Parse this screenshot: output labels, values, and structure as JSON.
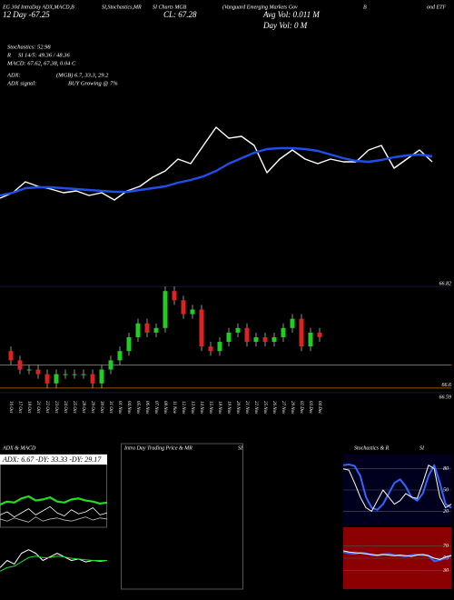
{
  "header": {
    "line1": [
      "EG 30d IntraDay ADX,MACD,B",
      "SI,Stochastics,MR",
      "SI Charts MGB",
      "(Vanguard Emerging Markets Gov",
      "B",
      "ond ETF"
    ],
    "line2": [
      "12 Day -67.25",
      "CL: 67.28",
      "Avg Vol: 0.011 M",
      "Day Vol: 0  M"
    ],
    "stats": [
      "Stochastics: 52.98",
      "R",
      "SI 14/5: 49.36 / 48.36",
      "MACD: 67.62, 67.38, 0.04 C"
    ],
    "adx": [
      "ADX:",
      "(MGB) 6.7, 33.3, 29.2",
      "ADX  signal:",
      "BUY Growing @ 7%"
    ]
  },
  "chart_data": [
    {
      "type": "line",
      "ylim": [
        66.55,
        66.85
      ],
      "series": [
        {
          "color": "#ffffff",
          "values": [
            66.586,
            66.604,
            66.64,
            66.625,
            66.616,
            66.604,
            66.61,
            66.595,
            66.604,
            66.58,
            66.61,
            66.625,
            66.655,
            66.676,
            66.715,
            66.7,
            66.76,
            66.82,
            66.784,
            66.79,
            66.76,
            66.67,
            66.715,
            66.745,
            66.715,
            66.7,
            66.715,
            66.706,
            66.706,
            66.745,
            66.76,
            66.685,
            66.715,
            66.745,
            66.706
          ]
        },
        {
          "color": "#1f4fe8",
          "values": [
            66.595,
            66.604,
            66.619,
            66.622,
            66.622,
            66.619,
            66.616,
            66.613,
            66.61,
            66.607,
            66.607,
            66.613,
            66.619,
            66.625,
            66.637,
            66.646,
            66.658,
            66.676,
            66.7,
            66.718,
            66.736,
            66.748,
            66.751,
            66.751,
            66.748,
            66.742,
            66.73,
            66.718,
            66.709,
            66.706,
            66.712,
            66.721,
            66.727,
            66.73,
            66.724
          ]
        }
      ]
    },
    {
      "type": "candlestick",
      "ylim": [
        66.58,
        66.83
      ],
      "yticks": [
        66.82,
        66.6,
        66.59
      ],
      "levels": [
        66.65,
        66.6
      ],
      "up_color": "#22cc22",
      "down_color": "#dd2222",
      "x": [
        "16 Oct",
        "17 Oct",
        "18 Oct",
        "21 Oct",
        "22 Oct",
        "23 Oct",
        "24 Oct",
        "25 Oct",
        "28 Oct",
        "29 Oct",
        "30 Oct",
        "31 Oct",
        "01 Nov",
        "04 Nov",
        "05 Nov",
        "06 Nov",
        "07 Nov",
        "08 Nov",
        "11 Nov",
        "12 Nov",
        "13 Nov",
        "14 Nov",
        "15 Nov",
        "18 Nov",
        "19 Nov",
        "20 Nov",
        "21 Nov",
        "22 Nov",
        "25 Nov",
        "26 Nov",
        "27 Nov",
        "29 Nov",
        "02 Dec",
        "03 Dec",
        "04 Dec"
      ],
      "open": [
        66.68,
        66.66,
        66.64,
        66.64,
        66.63,
        66.61,
        66.63,
        66.63,
        66.63,
        66.63,
        66.61,
        66.64,
        66.66,
        66.68,
        66.71,
        66.74,
        66.72,
        66.73,
        66.81,
        66.79,
        66.76,
        66.77,
        66.69,
        66.68,
        66.7,
        66.72,
        66.73,
        66.7,
        66.71,
        66.7,
        66.71,
        66.73,
        66.75,
        66.69,
        66.72
      ],
      "high": [
        66.69,
        66.67,
        66.65,
        66.65,
        66.64,
        66.64,
        66.64,
        66.64,
        66.64,
        66.64,
        66.65,
        66.67,
        66.69,
        66.72,
        66.75,
        66.75,
        66.74,
        66.82,
        66.82,
        66.8,
        66.78,
        66.78,
        66.7,
        66.71,
        66.73,
        66.74,
        66.74,
        66.72,
        66.72,
        66.72,
        66.74,
        66.76,
        66.76,
        66.73,
        66.73
      ],
      "low": [
        66.65,
        66.63,
        66.63,
        66.62,
        66.6,
        66.6,
        66.62,
        66.62,
        66.62,
        66.6,
        66.6,
        66.63,
        66.65,
        66.67,
        66.7,
        66.71,
        66.71,
        66.72,
        66.78,
        66.75,
        66.75,
        66.68,
        66.67,
        66.67,
        66.69,
        66.71,
        66.69,
        66.69,
        66.69,
        66.69,
        66.7,
        66.72,
        66.68,
        66.68,
        66.7
      ],
      "close": [
        66.66,
        66.64,
        66.64,
        66.63,
        66.61,
        66.63,
        66.63,
        66.63,
        66.63,
        66.61,
        66.64,
        66.66,
        66.68,
        66.71,
        66.74,
        66.72,
        66.73,
        66.81,
        66.79,
        66.76,
        66.77,
        66.69,
        66.68,
        66.7,
        66.72,
        66.73,
        66.7,
        66.71,
        66.7,
        66.71,
        66.73,
        66.75,
        66.69,
        66.72,
        66.71
      ]
    },
    {
      "type": "line",
      "title": "ADX  & MACD",
      "annotation": "ADX: 6.67  -DY: 33.33  -DY: 29.17",
      "ylim": [
        0,
        60
      ],
      "series": [
        {
          "color": "#22dd22",
          "values": [
            22,
            25,
            24,
            28,
            30,
            26,
            27,
            29,
            25,
            24,
            27,
            28,
            26,
            25,
            23,
            24
          ]
        },
        {
          "color": "#ffffff",
          "values": [
            12,
            15,
            10,
            14,
            18,
            12,
            16,
            20,
            14,
            11,
            17,
            13,
            15,
            19,
            12,
            14
          ]
        },
        {
          "color": "#bbbbbb",
          "values": [
            8,
            6,
            9,
            7,
            5,
            10,
            6,
            8,
            9,
            7,
            6,
            8,
            10,
            7,
            9,
            8
          ]
        }
      ]
    },
    {
      "type": "line",
      "ylim": [
        -0.2,
        0.6
      ],
      "series": [
        {
          "color": "#ffffff",
          "values": [
            0.1,
            0.2,
            0.15,
            0.3,
            0.35,
            0.3,
            0.2,
            0.25,
            0.3,
            0.25,
            0.2,
            0.22,
            0.18,
            0.2,
            0.19,
            0.2
          ]
        },
        {
          "color": "#22dd22",
          "values": [
            0.05,
            0.1,
            0.12,
            0.18,
            0.24,
            0.26,
            0.24,
            0.24,
            0.26,
            0.25,
            0.23,
            0.22,
            0.21,
            0.2,
            0.2,
            0.2
          ]
        }
      ]
    },
    {
      "type": "line",
      "title": "Intra Day Trading Price & MR",
      "subtitle": "SI",
      "ylim": [
        0,
        100
      ],
      "series": []
    },
    {
      "type": "line",
      "title": "Stochastics & R",
      "subtitle": "SI",
      "ylim": [
        0,
        100
      ],
      "yticks": [
        80,
        50,
        20
      ],
      "background": "#00001e",
      "series": [
        {
          "color": "#3366ff",
          "values": [
            85,
            86,
            84,
            70,
            40,
            25,
            22,
            30,
            45,
            60,
            65,
            55,
            40,
            35,
            45,
            70,
            85,
            60,
            30,
            25
          ]
        },
        {
          "color": "#ffffff",
          "values": [
            80,
            78,
            60,
            40,
            25,
            20,
            35,
            50,
            40,
            30,
            35,
            45,
            40,
            38,
            60,
            85,
            80,
            40,
            25,
            30
          ]
        }
      ]
    },
    {
      "type": "line",
      "ylim": [
        0,
        100
      ],
      "yticks": [
        70,
        50,
        30
      ],
      "background": "#8b0000",
      "series": [
        {
          "color": "#3366ff",
          "values": [
            60,
            58,
            57,
            59,
            58,
            55,
            54,
            56,
            57,
            55,
            54,
            53,
            55,
            56,
            55,
            54,
            45,
            47,
            50,
            55
          ]
        },
        {
          "color": "#ffffff",
          "values": [
            62,
            60,
            59,
            58,
            57,
            56,
            55,
            56,
            55,
            54,
            55,
            54,
            53,
            55,
            56,
            54,
            50,
            48,
            52,
            54
          ]
        }
      ]
    }
  ]
}
